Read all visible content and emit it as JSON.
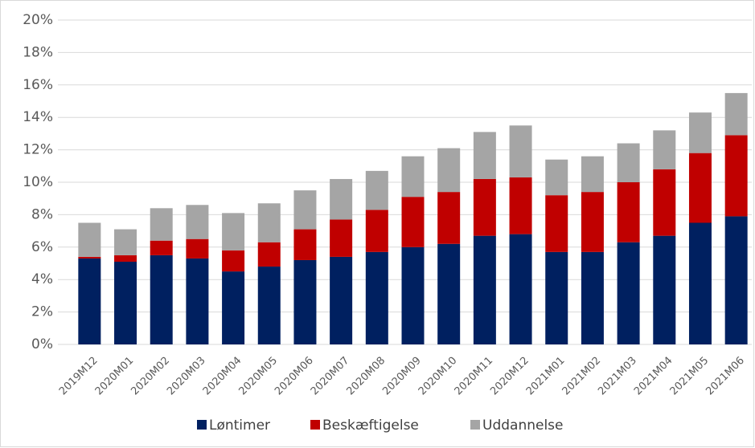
{
  "chart_data": {
    "type": "stacked_bar",
    "categories": [
      "2019M12",
      "2020M01",
      "2020M02",
      "2020M03",
      "2020M04",
      "2020M05",
      "2020M06",
      "2020M07",
      "2020M08",
      "2020M09",
      "2020M10",
      "2020M11",
      "2020M12",
      "2021M01",
      "2021M02",
      "2021M03",
      "2021M04",
      "2021M05",
      "2021M06"
    ],
    "series": [
      {
        "name": "Løntimer",
        "color": "#002060",
        "values": [
          5.3,
          5.1,
          5.5,
          5.3,
          4.5,
          4.8,
          5.2,
          5.4,
          5.7,
          6.0,
          6.2,
          6.7,
          6.8,
          5.7,
          5.7,
          6.3,
          6.7,
          7.5,
          7.9
        ]
      },
      {
        "name": "Beskæftigelse",
        "color": "#c00000",
        "values": [
          0.1,
          0.4,
          0.9,
          1.2,
          1.3,
          1.5,
          1.9,
          2.3,
          2.6,
          3.1,
          3.2,
          3.5,
          3.5,
          3.5,
          3.7,
          3.7,
          4.1,
          4.3,
          5.0
        ]
      },
      {
        "name": "Uddannelse",
        "color": "#a5a5a5",
        "values": [
          2.1,
          1.6,
          2.0,
          2.1,
          2.3,
          2.4,
          2.4,
          2.5,
          2.4,
          2.5,
          2.7,
          2.9,
          3.2,
          2.2,
          2.2,
          2.4,
          2.4,
          2.5,
          2.6
        ]
      }
    ],
    "ylim": [
      0,
      20
    ],
    "yticks": [
      {
        "value": 0,
        "label": "0%"
      },
      {
        "value": 2,
        "label": "2%"
      },
      {
        "value": 4,
        "label": "4%"
      },
      {
        "value": 6,
        "label": "6%"
      },
      {
        "value": 8,
        "label": "8%"
      },
      {
        "value": 10,
        "label": "10%"
      },
      {
        "value": 12,
        "label": "12%"
      },
      {
        "value": 14,
        "label": "14%"
      },
      {
        "value": 16,
        "label": "16%"
      },
      {
        "value": 18,
        "label": "18%"
      },
      {
        "value": 20,
        "label": "20%"
      }
    ],
    "grid": true,
    "legend": "bottom"
  }
}
